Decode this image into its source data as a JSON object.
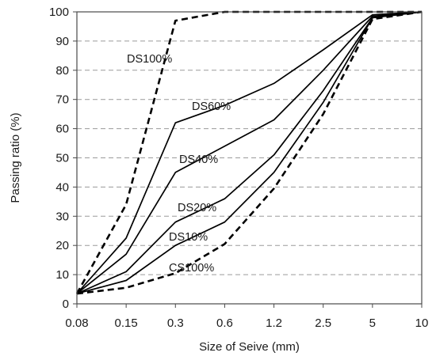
{
  "chart_data": {
    "type": "line",
    "xlabel": "Size of Seive (mm)",
    "ylabel": "Passing ratio (%)",
    "categories": [
      "0.08",
      "0.15",
      "0.3",
      "0.6",
      "1.2",
      "2.5",
      "5",
      "10"
    ],
    "ylim": [
      0,
      100
    ],
    "yticks": [
      0,
      10,
      20,
      30,
      40,
      50,
      60,
      70,
      80,
      90,
      100
    ],
    "grid": "horizontal-dashed",
    "colors": {
      "line": "#000000",
      "grid": "#9a9a9a"
    },
    "series": [
      {
        "name": "DS100%",
        "dash": "dashed",
        "values": [
          3.5,
          34,
          97,
          100,
          100,
          100,
          100,
          100
        ]
      },
      {
        "name": "DS60%",
        "dash": "solid",
        "values": [
          3.5,
          22.5,
          62,
          68,
          75.5,
          87,
          99,
          100
        ]
      },
      {
        "name": "DS40%",
        "dash": "solid",
        "values": [
          3.5,
          17,
          45,
          54,
          63,
          80,
          98.5,
          100
        ]
      },
      {
        "name": "DS20%",
        "dash": "solid",
        "values": [
          3.5,
          11,
          28,
          36,
          51,
          73,
          98,
          100
        ]
      },
      {
        "name": "DS10%",
        "dash": "solid",
        "values": [
          3.5,
          8,
          20,
          28,
          45,
          69,
          98,
          100
        ]
      },
      {
        "name": "CS100%",
        "dash": "dashed",
        "values": [
          3.5,
          5.5,
          10.5,
          20.5,
          39.5,
          65,
          97.5,
          100
        ]
      }
    ]
  }
}
